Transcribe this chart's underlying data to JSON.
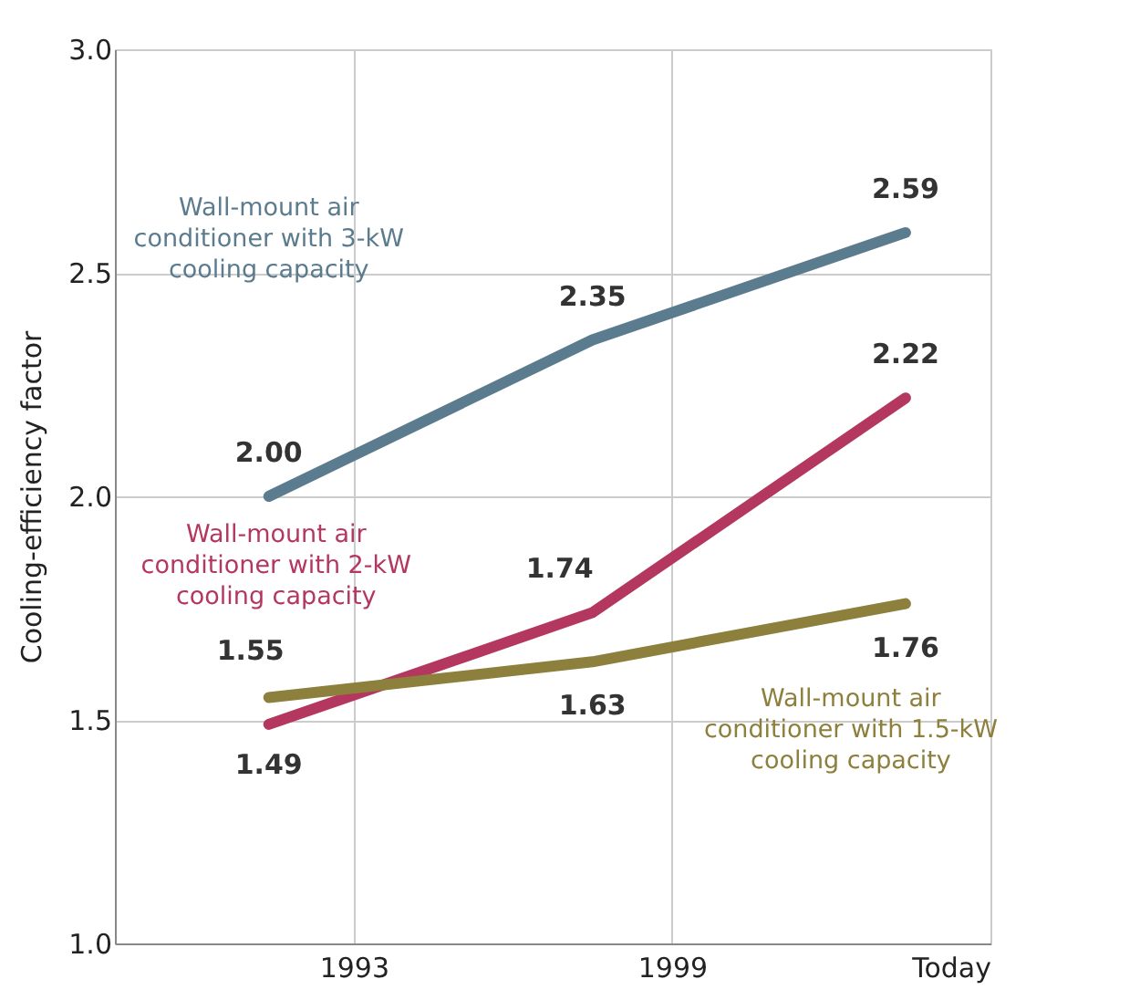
{
  "chart_data": {
    "type": "line",
    "ylabel": "Cooling-efficiency factor",
    "x": [
      1991.4,
      1997.5,
      2003.4
    ],
    "xlim": [
      1988.5,
      2005
    ],
    "xticks": [
      1993,
      1999,
      {
        "value": 2005,
        "label": "Today"
      }
    ],
    "ylim": [
      1.0,
      3.0
    ],
    "yticks": [
      {
        "value": 1,
        "label": "1.0"
      },
      1.5,
      {
        "value": 2,
        "label": "2.0"
      },
      2.5,
      {
        "value": 3,
        "label": "3.0"
      }
    ],
    "series": [
      {
        "name": "Wall-mount air conditioner with 3-kW cooling capacity",
        "color": "#5b7b8e",
        "values": [
          2.0,
          2.35,
          2.59
        ],
        "value_labels": [
          "2.00",
          "2.35",
          "2.59"
        ]
      },
      {
        "name": "Wall-mount air conditioner with 2-kW cooling capacity",
        "color": "#b3375f",
        "values": [
          1.49,
          1.74,
          2.22
        ],
        "value_labels": [
          "1.49",
          "1.74",
          "2.22"
        ]
      },
      {
        "name": "Wall-mount air conditioner with 1.5-kW cooling capacity",
        "color": "#8d7f3c",
        "values": [
          1.55,
          1.63,
          1.76
        ],
        "value_labels": [
          "1.55",
          "1.63",
          "1.76"
        ]
      }
    ],
    "grid": true,
    "legend": false,
    "marker": "none",
    "line_style": "solid"
  }
}
